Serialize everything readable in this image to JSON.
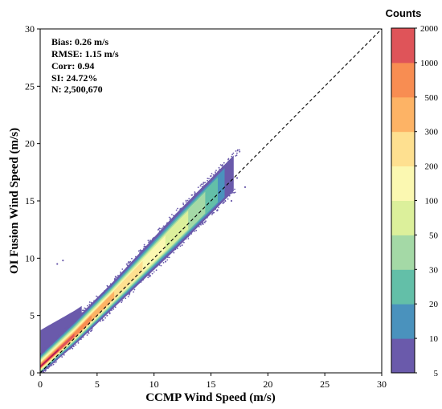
{
  "chart_data": {
    "type": "heatmap",
    "subtype": "density-scatter",
    "xlabel": "CCMP Wind Speed (m/s)",
    "ylabel": "OI Fusion Wind Speed (m/s)",
    "xlim": [
      0,
      30
    ],
    "ylim": [
      0,
      30
    ],
    "x_ticks": [
      "0",
      "5",
      "10",
      "15",
      "20",
      "25",
      "30"
    ],
    "y_ticks": [
      "0",
      "5",
      "10",
      "15",
      "20",
      "25",
      "30"
    ],
    "reference_line": {
      "style": "dashed",
      "from": [
        0,
        0
      ],
      "to": [
        30,
        30
      ],
      "color": "#000000"
    },
    "stats": [
      "Bias: 0.26 m/s",
      "RMSE: 1.15 m/s",
      "Corr: 0.94",
      "SI: 24.72%",
      "N: 2,500,670"
    ],
    "colorbar": {
      "title": "Counts",
      "tick_labels": [
        "5",
        "10",
        "20",
        "30",
        "50",
        "100",
        "200",
        "300",
        "500",
        "1000",
        "2000"
      ],
      "colors": [
        "#6a5aab",
        "#4a92bd",
        "#63bfa8",
        "#a4d9a6",
        "#dcf09b",
        "#fbf8b1",
        "#fee090",
        "#fdb365",
        "#f88d52",
        "#df5459",
        "#b4174e"
      ]
    },
    "density_profile": [
      {
        "x": 0.5,
        "y": 0.8,
        "level": 10
      },
      {
        "x": 2,
        "y": 2.1,
        "level": 9
      },
      {
        "x": 4,
        "y": 4.2,
        "level": 7
      },
      {
        "x": 6,
        "y": 6.2,
        "level": 6
      },
      {
        "x": 8,
        "y": 8.2,
        "level": 5
      },
      {
        "x": 10,
        "y": 10.2,
        "level": 4
      },
      {
        "x": 12,
        "y": 12.2,
        "level": 3
      },
      {
        "x": 14,
        "y": 14.0,
        "level": 1
      },
      {
        "x": 16,
        "y": 15.5,
        "level": 0
      }
    ],
    "grid": false
  }
}
